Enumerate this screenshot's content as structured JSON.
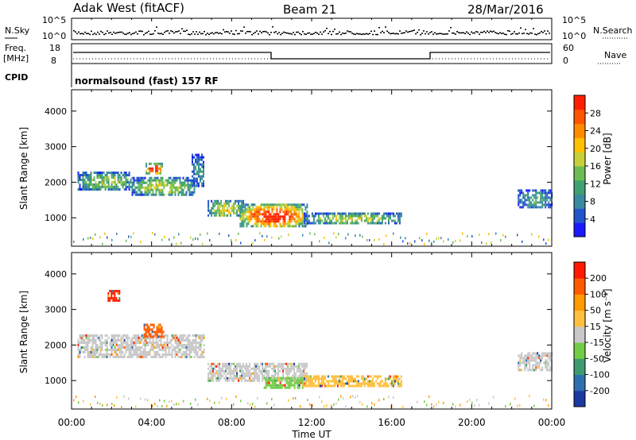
{
  "header": {
    "station": "Adak West (fitACF)",
    "beam": "Beam 21",
    "date": "28/Mar/2016"
  },
  "top_panels": {
    "nsky_label": "N.Sky",
    "nsky_ticks": [
      "10^5",
      "10^0"
    ],
    "nsearch_label": "N.Search",
    "nsearch_ticks": [
      "10^5",
      "10^0"
    ],
    "freq_label_line1": "Freq.",
    "freq_label_line2": "[MHz]",
    "freq_ticks": [
      "18",
      "8"
    ],
    "nave_label": "Nave",
    "nave_ticks": [
      "60",
      "0"
    ],
    "cpid_label": "CPID",
    "cpid_text": "normalsound (fast) 157 RF"
  },
  "chart_data": [
    {
      "type": "heatmap",
      "name": "Power",
      "ylabel": "Slant Range [km]",
      "yticks": [
        1000,
        2000,
        3000,
        4000
      ],
      "ylim": [
        200,
        4600
      ],
      "xlim": [
        0,
        24
      ],
      "colorbar": {
        "label": "Power [dB]",
        "ticks": [
          "28",
          "24",
          "20",
          "16",
          "12",
          "8",
          "4"
        ],
        "colors": [
          "#1a1aff",
          "#2255cc",
          "#3a8aa0",
          "#3fa070",
          "#6dbb55",
          "#c8cf3a",
          "#ffc000",
          "#ff8c00",
          "#ff5500",
          "#ff2000"
        ]
      },
      "regions": [
        {
          "t0": 0.3,
          "t1": 3.0,
          "r0": 1800,
          "r1": 2300,
          "level": 0.35
        },
        {
          "t0": 3.0,
          "t1": 6.1,
          "r0": 1650,
          "r1": 2150,
          "level": 0.4
        },
        {
          "t0": 3.7,
          "t1": 4.5,
          "r0": 2250,
          "r1": 2550,
          "level": 0.75
        },
        {
          "t0": 6.0,
          "t1": 6.6,
          "r0": 1900,
          "r1": 2800,
          "level": 0.2
        },
        {
          "t0": 6.8,
          "t1": 8.6,
          "r0": 1050,
          "r1": 1500,
          "level": 0.45
        },
        {
          "t0": 8.4,
          "t1": 11.8,
          "r0": 750,
          "r1": 1400,
          "level": 0.7
        },
        {
          "t0": 11.6,
          "t1": 16.5,
          "r0": 850,
          "r1": 1150,
          "level": 0.4
        },
        {
          "t0": 22.3,
          "t1": 24.0,
          "r0": 1300,
          "r1": 1800,
          "level": 0.25
        }
      ]
    },
    {
      "type": "heatmap",
      "name": "Velocity",
      "ylabel": "Slant Range [km]",
      "yticks": [
        1000,
        2000,
        3000,
        4000
      ],
      "ylim": [
        200,
        4600
      ],
      "xlim": [
        0,
        24
      ],
      "xlabel": "Time UT",
      "xticks": [
        "00:00",
        "04:00",
        "08:00",
        "12:00",
        "16:00",
        "20:00",
        "00:00"
      ],
      "colorbar": {
        "label": "Velocity [m s⁻¹]",
        "ticks": [
          "200",
          "100",
          "50",
          "15",
          "-15",
          "-50",
          "-100",
          "-200"
        ],
        "colors": [
          "#1a3aa0",
          "#2f6fb0",
          "#3f9a70",
          "#72cc44",
          "#c8c8c8",
          "#ffc040",
          "#ff9a00",
          "#ff5a00",
          "#ff1a00"
        ]
      },
      "regions": [
        {
          "t0": 0.3,
          "t1": 6.6,
          "r0": 1650,
          "r1": 2300,
          "color": "#c8c8c8"
        },
        {
          "t0": 3.6,
          "t1": 4.6,
          "r0": 2250,
          "r1": 2600,
          "color": "#ff5a00"
        },
        {
          "t0": 1.8,
          "t1": 2.4,
          "r0": 3250,
          "r1": 3550,
          "color": "#ff2000"
        },
        {
          "t0": 6.8,
          "t1": 11.8,
          "r0": 1000,
          "r1": 1500,
          "color": "#c8c8c8"
        },
        {
          "t0": 9.6,
          "t1": 11.6,
          "r0": 780,
          "r1": 1100,
          "color": "#72cc44"
        },
        {
          "t0": 11.6,
          "t1": 16.5,
          "r0": 850,
          "r1": 1150,
          "color": "#ffc040"
        },
        {
          "t0": 22.3,
          "t1": 24.0,
          "r0": 1300,
          "r1": 1800,
          "color": "#c8c8c8"
        }
      ]
    }
  ]
}
